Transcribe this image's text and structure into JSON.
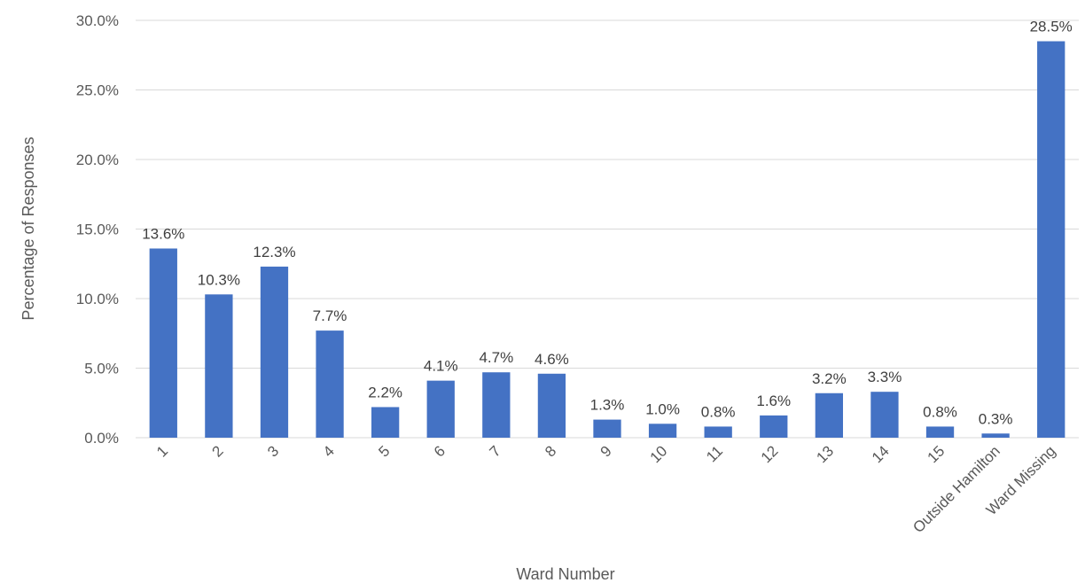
{
  "chart_data": {
    "type": "bar",
    "title": "",
    "xlabel": "Ward Number",
    "ylabel": "Percentage of Responses",
    "categories": [
      "1",
      "2",
      "3",
      "4",
      "5",
      "6",
      "7",
      "8",
      "9",
      "10",
      "11",
      "12",
      "13",
      "14",
      "15",
      "Outside Hamilton",
      "Ward Missing"
    ],
    "values": [
      13.6,
      10.3,
      12.3,
      7.7,
      2.2,
      4.1,
      4.7,
      4.6,
      1.3,
      1.0,
      0.8,
      1.6,
      3.2,
      3.3,
      0.8,
      0.3,
      28.5
    ],
    "data_labels": [
      "13.6%",
      "10.3%",
      "12.3%",
      "7.7%",
      "2.2%",
      "4.1%",
      "4.7%",
      "4.6%",
      "1.3%",
      "1.0%",
      "0.8%",
      "1.6%",
      "3.2%",
      "3.3%",
      "0.8%",
      "0.3%",
      "28.5%"
    ],
    "ylim": [
      0,
      30
    ],
    "yticks": [
      0,
      5,
      10,
      15,
      20,
      25,
      30
    ],
    "ytick_labels": [
      "0.0%",
      "5.0%",
      "10.0%",
      "15.0%",
      "20.0%",
      "25.0%",
      "30.0%"
    ],
    "grid": true,
    "legend": "none",
    "bar_color": "#4472c4"
  }
}
